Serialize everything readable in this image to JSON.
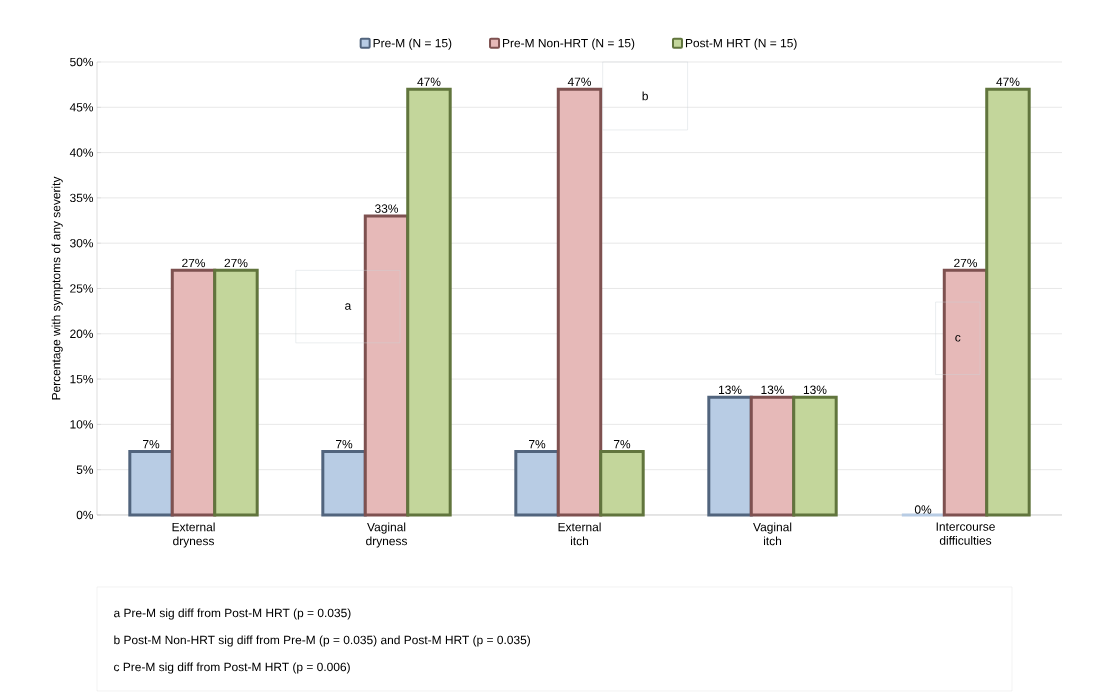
{
  "chart_data": {
    "type": "bar",
    "ylabel": "Percentage with symptoms of any severity",
    "categories": [
      "External\ndryness",
      "Vaginal\ndryness",
      "External\nitch",
      "Vaginal\nitch",
      "Intercourse\ndifficulties"
    ],
    "series": [
      {
        "name": "Pre-M (N = 15)",
        "color": "#b8cce4",
        "values": [
          7,
          7,
          7,
          13,
          0
        ],
        "value_labels": [
          "7%",
          "7%",
          "7%",
          "13%",
          "0%"
        ]
      },
      {
        "name": "Pre-M Non-HRT (N = 15)",
        "color": "#e6b9b8",
        "values": [
          27,
          33,
          47,
          13,
          27
        ],
        "value_labels": [
          "27%",
          "33%",
          "47%",
          "13%",
          "27%"
        ]
      },
      {
        "name": "Post-M HRT (N = 15)",
        "color": "#c3d69b",
        "values": [
          27,
          47,
          7,
          13,
          47
        ],
        "value_labels": [
          "27%",
          "47%",
          "7%",
          "13%",
          "47%"
        ]
      }
    ],
    "ylim": [
      0,
      50
    ],
    "yticks": [
      {
        "value": 0,
        "label": "0%"
      },
      {
        "value": 5,
        "label": "5%"
      },
      {
        "value": 10,
        "label": "10%"
      },
      {
        "value": 15,
        "label": "15%"
      },
      {
        "value": 20,
        "label": "20%"
      },
      {
        "value": 25,
        "label": "25%"
      },
      {
        "value": 30,
        "label": "30%"
      },
      {
        "value": 35,
        "label": "35%"
      },
      {
        "value": 40,
        "label": "40%"
      },
      {
        "value": 45,
        "label": "45%"
      },
      {
        "value": 50,
        "label": "50%"
      }
    ],
    "grid": "y",
    "legend": "top",
    "annotations": [
      "a",
      "b",
      "c",
      "a Pre-M sig diff from Post-M HRT (p = 0.035)",
      "b Post-M Non-HRT sig diff from Pre-M (p = 0.035) and Post-M HRT (p = 0.035)",
      "c Pre-M sig diff from Post-M HRT (p = 0.006)"
    ]
  }
}
